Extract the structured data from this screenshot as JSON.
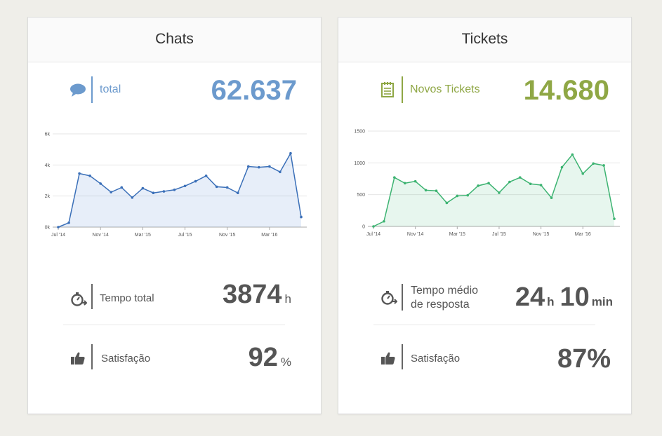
{
  "chats": {
    "title": "Chats",
    "kpi": {
      "label": "total",
      "value": "62.637",
      "icon": "chat-bubble-icon",
      "color": "#6c9acd"
    },
    "tempo": {
      "label": "Tempo total",
      "value": "3874",
      "unit": "h",
      "icon": "stopwatch-icon"
    },
    "satisfacao": {
      "label": "Satisfação",
      "value": "92",
      "unit": "%",
      "icon": "thumbs-up-icon"
    }
  },
  "tickets": {
    "title": "Tickets",
    "kpi": {
      "label": "Novos Tickets",
      "value": "14.680",
      "icon": "notepad-icon",
      "color": "#8fa745"
    },
    "tempo": {
      "label_line1": "Tempo médio",
      "label_line2": "de resposta",
      "hours": "24",
      "hours_unit": "h",
      "minutes": "10",
      "minutes_unit": "min",
      "icon": "stopwatch-icon"
    },
    "satisfacao": {
      "label": "Satisfação",
      "value": "87%",
      "icon": "thumbs-up-icon"
    }
  },
  "chart_data": [
    {
      "type": "area",
      "color": "#3a6fb8",
      "ylim": [
        0,
        6000
      ],
      "y_ticks": [
        0,
        2000,
        4000,
        6000
      ],
      "y_tick_labels": [
        "0k",
        "2k",
        "4k",
        "6k"
      ],
      "x_tick_labels": [
        "Jul '14",
        "Nov '14",
        "Mar '15",
        "Jul '15",
        "Nov '15",
        "Mar '16"
      ],
      "x_tick_index": [
        0,
        4,
        8,
        12,
        16,
        20
      ],
      "values": [
        0,
        280,
        3450,
        3300,
        2800,
        2250,
        2550,
        1900,
        2500,
        2200,
        2300,
        2400,
        2650,
        2950,
        3300,
        2600,
        2550,
        2200,
        3900,
        3850,
        3900,
        3550,
        4750,
        650
      ]
    },
    {
      "type": "area",
      "color": "#3cb371",
      "ylim": [
        0,
        1500
      ],
      "y_ticks": [
        0,
        500,
        1000,
        1500
      ],
      "y_tick_labels": [
        "0",
        "500",
        "1000",
        "1500"
      ],
      "x_tick_labels": [
        "Jul '14",
        "Nov '14",
        "Mar '15",
        "Jul '15",
        "Nov '15",
        "Mar '16"
      ],
      "x_tick_index": [
        0,
        4,
        8,
        12,
        16,
        20
      ],
      "values": [
        0,
        80,
        770,
        680,
        710,
        570,
        560,
        370,
        480,
        490,
        640,
        680,
        530,
        700,
        770,
        670,
        650,
        450,
        930,
        1130,
        830,
        990,
        960,
        120
      ]
    }
  ]
}
